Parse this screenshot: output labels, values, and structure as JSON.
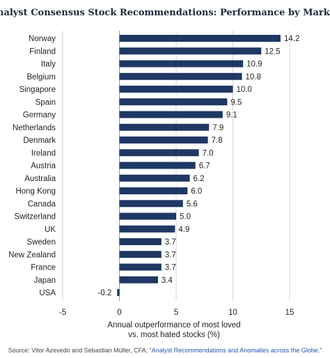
{
  "chart_data": {
    "type": "bar",
    "orientation": "horizontal",
    "title": "Analyst Consensus Stock Recommendations: Performance by Market",
    "categories": [
      "Norway",
      "Finland",
      "Italy",
      "Belgium",
      "Singapore",
      "Spain",
      "Germany",
      "Netherlands",
      "Denmark",
      "Ireland",
      "Austria",
      "Australia",
      "Hong Kong",
      "Canada",
      "Switzerland",
      "UK",
      "Sweden",
      "New Zealand",
      "France",
      "Japan",
      "USA"
    ],
    "values": [
      14.2,
      12.5,
      10.9,
      10.8,
      10.0,
      9.5,
      9.1,
      7.9,
      7.8,
      7.0,
      6.7,
      6.2,
      6.0,
      5.6,
      5.0,
      4.9,
      3.7,
      3.7,
      3.7,
      3.4,
      -0.2
    ],
    "value_labels": [
      "14.2",
      "12.5",
      "10.9",
      "10.8",
      "10.0",
      "9.5",
      "9.1",
      "7.9",
      "7.8",
      "7.0",
      "6.7",
      "6.2",
      "6.0",
      "5.6",
      "5.0",
      "4.9",
      "3.7",
      "3.7",
      "3.7",
      "3.4",
      "-0.2"
    ],
    "xlabel": [
      "Annual outperformance of most loved",
      "vs. most hated stocks (%)"
    ],
    "xlim": [
      -5,
      15
    ],
    "xticks": [
      "-5",
      "0",
      "5",
      "10",
      "15"
    ],
    "grid": true,
    "bar_color": "#1f3864"
  },
  "source": {
    "prefix": "Source: Vitor Azevedo and Sebastian Müller, CFA; ",
    "link": "“Analyst Recommendations and Anomalies across the Globe.”"
  }
}
